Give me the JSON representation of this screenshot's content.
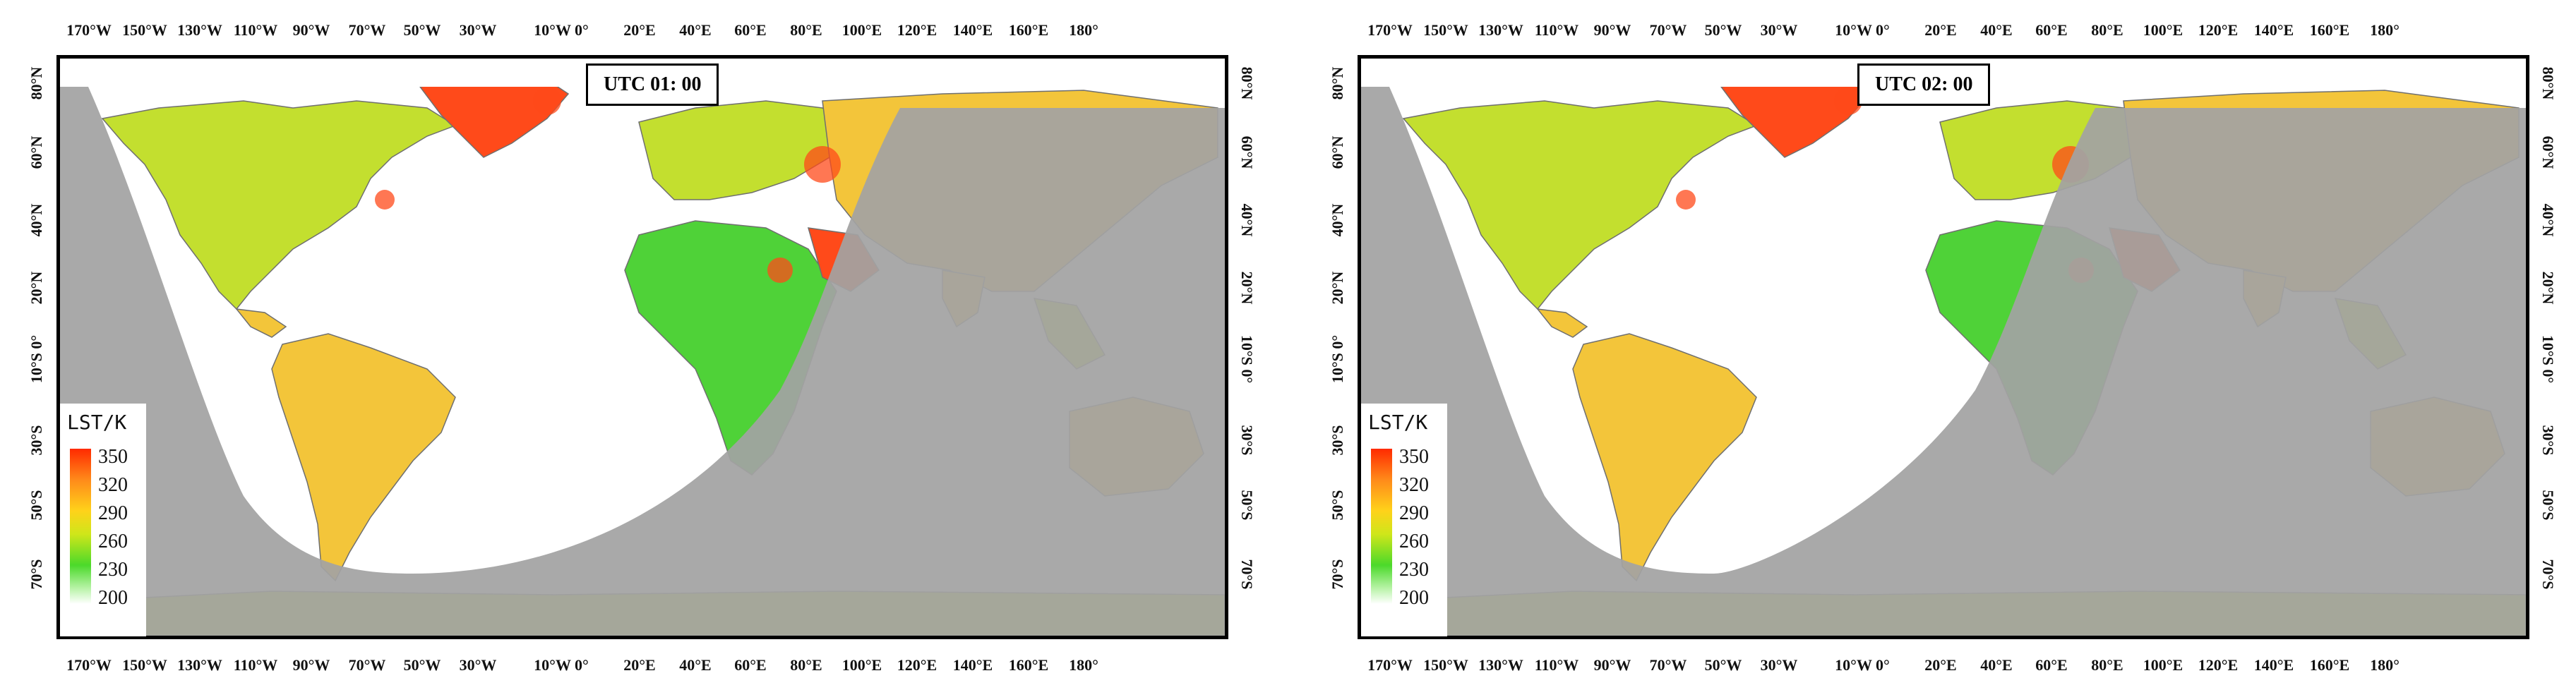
{
  "colors": {
    "night": "#a3a3a3",
    "day": "#ffffff",
    "land_hot": "#ff4a1a",
    "land_warm": "#f3c53a",
    "land_mild": "#c3df2f",
    "land_cool": "#4fd238",
    "border": "#6f6f6f"
  },
  "axes": {
    "lon_ticks": [
      "170°W",
      "150°W",
      "130°W",
      "110°W",
      "90°W",
      "70°W",
      "50°W",
      "30°W",
      "10°W 0°",
      "20°E",
      "40°E",
      "60°E",
      "80°E",
      "100°E",
      "120°E",
      "140°E",
      "160°E",
      "180°"
    ],
    "lat_ticks_left": [
      "80°N",
      "60°N",
      "40°N",
      "20°N",
      "10°S 0°",
      "30°S",
      "50°S",
      "70°S"
    ],
    "lat_ticks_right": [
      "80°N",
      "60°N",
      "40°N",
      "20°N",
      "10°S 0°",
      "30°S",
      "50°S",
      "70°S"
    ]
  },
  "legend": {
    "title": "LST/K",
    "values": [
      "350",
      "320",
      "290",
      "260",
      "230",
      "200"
    ]
  },
  "panels": [
    {
      "utc_label": "UTC 01: 00"
    },
    {
      "utc_label": "UTC 02: 00"
    }
  ]
}
